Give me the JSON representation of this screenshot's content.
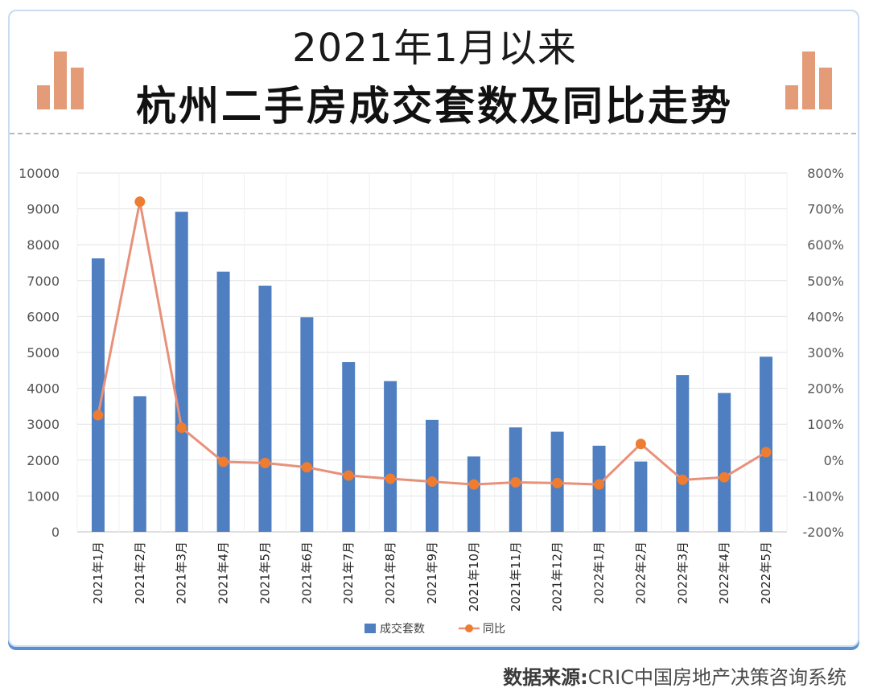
{
  "header": {
    "title_line1": "2021年1月以来",
    "title_line2": "杭州二手房成交套数及同比走势"
  },
  "source": {
    "label": "数据来源:",
    "text": "CRIC中国房地产决策咨询系统"
  },
  "colors": {
    "bar": "#4f7fc1",
    "line": "#e8917a",
    "marker": "#ee7d31",
    "deco": "#e39b78",
    "frame": "#5b8fcf"
  },
  "chart_data": {
    "type": "bar",
    "categories": [
      "2021年1月",
      "2021年2月",
      "2021年3月",
      "2021年4月",
      "2021年5月",
      "2021年6月",
      "2021年7月",
      "2021年8月",
      "2021年9月",
      "2021年10月",
      "2021年11月",
      "2021年12月",
      "2022年1月",
      "2022年2月",
      "2022年3月",
      "2022年4月",
      "2022年5月"
    ],
    "series": [
      {
        "name": "成交套数",
        "type": "bar",
        "axis": "left",
        "values": [
          7620,
          3780,
          8920,
          7250,
          6860,
          5980,
          4730,
          4200,
          3120,
          2100,
          2910,
          2790,
          2400,
          1960,
          4370,
          3870,
          4880
        ]
      },
      {
        "name": "同比",
        "type": "line",
        "axis": "right",
        "values": [
          125,
          720,
          90,
          -5,
          -8,
          -20,
          -43,
          -52,
          -60,
          -68,
          -62,
          -64,
          -68,
          45,
          -55,
          -48,
          22
        ]
      }
    ],
    "y_left": {
      "min": 0,
      "max": 10000,
      "ticks": [
        "0",
        "1000",
        "2000",
        "3000",
        "4000",
        "5000",
        "6000",
        "7000",
        "8000",
        "9000",
        "10000"
      ]
    },
    "y_right": {
      "min": -200,
      "max": 800,
      "ticks": [
        "-200%",
        "-100%",
        "0%",
        "100%",
        "200%",
        "300%",
        "400%",
        "500%",
        "600%",
        "700%",
        "800%"
      ]
    },
    "grid": true,
    "legend": "bottom"
  }
}
